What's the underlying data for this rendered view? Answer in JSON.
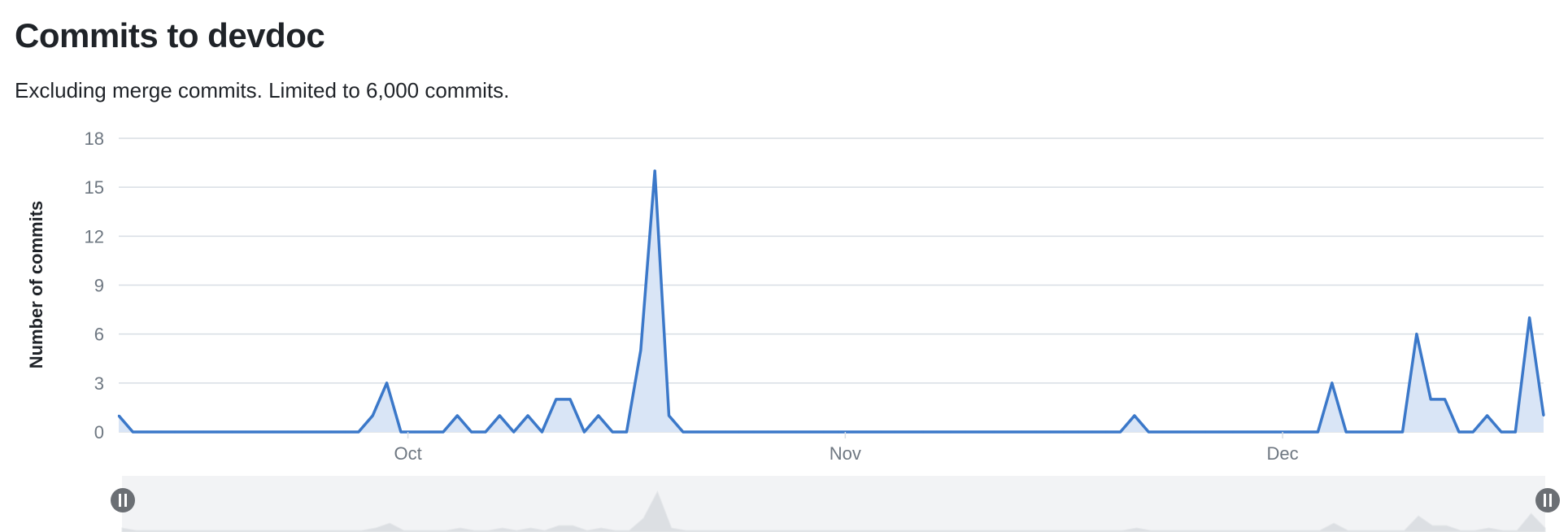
{
  "header": {
    "title": "Commits to devdoc",
    "subtitle": "Excluding merge commits. Limited to 6,000 commits."
  },
  "chart_data": {
    "type": "area",
    "ylabel": "Number of commits",
    "ylim": [
      0,
      18
    ],
    "y_ticks": [
      0,
      3,
      6,
      9,
      12,
      15,
      18
    ],
    "x_ticks": [
      "Oct",
      "Nov",
      "Dec"
    ],
    "x_tick_index": [
      20.5,
      51.5,
      82.5
    ],
    "grid": true,
    "colors": {
      "line": "#3b78c9",
      "fill": "#d9e5f6",
      "grid": "#d8dee4",
      "navigator_bg": "#f2f3f5",
      "navigator_series": "#dcdfe3",
      "handle": "#6b6f74"
    },
    "series": [
      {
        "values": [
          1,
          0,
          0,
          0,
          0,
          0,
          0,
          0,
          0,
          0,
          0,
          0,
          0,
          0,
          0,
          0,
          0,
          0,
          1,
          3,
          0,
          0,
          0,
          0,
          1,
          0,
          0,
          1,
          0,
          1,
          0,
          2,
          2,
          0,
          1,
          0,
          0,
          5,
          16,
          1,
          0,
          0,
          0,
          0,
          0,
          0,
          0,
          0,
          0,
          0,
          0,
          0,
          0,
          0,
          0,
          0,
          0,
          0,
          0,
          0,
          0,
          0,
          0,
          0,
          0,
          0,
          0,
          0,
          0,
          0,
          0,
          0,
          1,
          0,
          0,
          0,
          0,
          0,
          0,
          0,
          0,
          0,
          0,
          0,
          0,
          0,
          3,
          0,
          0,
          0,
          0,
          0,
          6,
          2,
          2,
          0,
          0,
          1,
          0,
          0,
          7,
          1
        ]
      }
    ]
  }
}
